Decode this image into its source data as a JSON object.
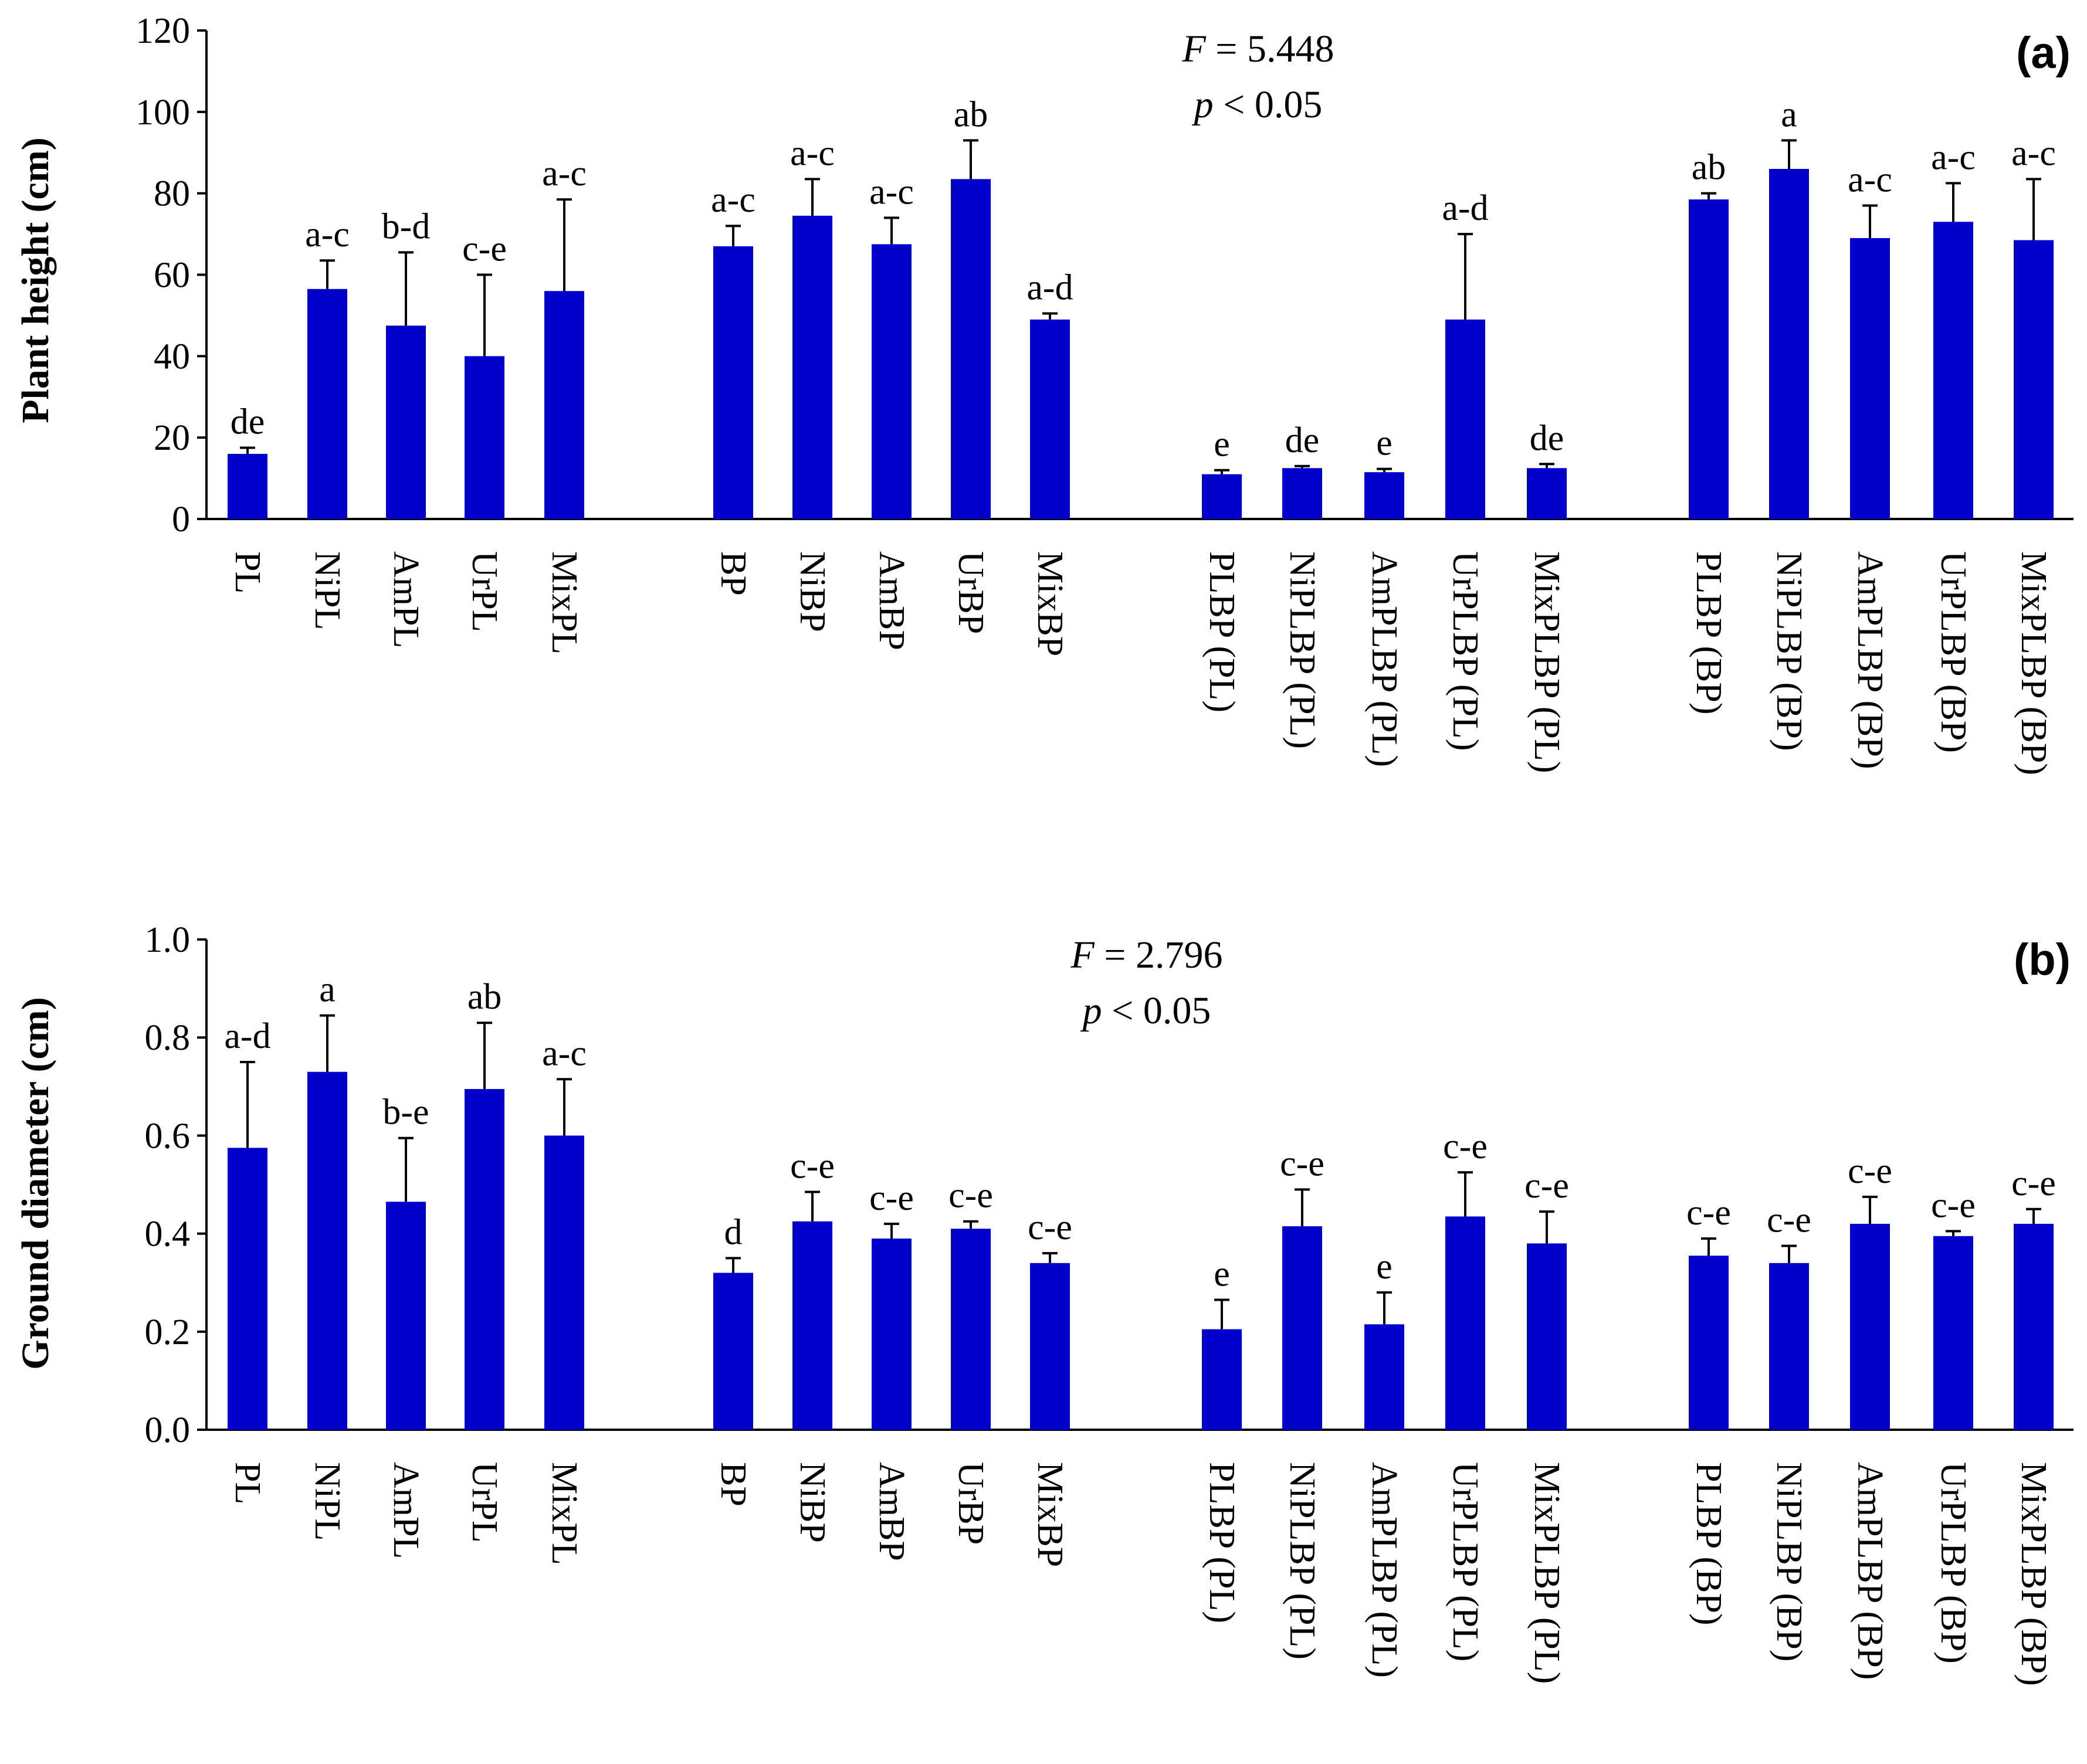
{
  "colors": {
    "bar": "#0000CD",
    "axis": "#000000"
  },
  "chart_data": [
    {
      "type": "bar",
      "panel_label": "(a)",
      "ylabel": "Plant height (cm)",
      "xlabel": "",
      "ylim": [
        0,
        120
      ],
      "yticks": [
        "0",
        "20",
        "40",
        "60",
        "80",
        "100",
        "120"
      ],
      "stats": {
        "f_letter": "F",
        "f_value": " = 5.448",
        "p_letter": "p",
        "p_value": " < 0.05"
      },
      "groups": [
        {
          "categories": [
            "PL",
            "NiPL",
            "AmPL",
            "UrPL",
            "MixPL"
          ],
          "values": [
            16,
            56.5,
            47.5,
            40,
            56
          ],
          "errors": [
            1.5,
            7,
            18,
            20,
            22.5
          ],
          "letters": [
            "de",
            "a-c",
            "b-d",
            "c-e",
            "a-c"
          ]
        },
        {
          "categories": [
            "BP",
            "NiBP",
            "AmBP",
            "UrBP",
            "MixBP"
          ],
          "values": [
            67,
            74.5,
            67.5,
            83.5,
            49
          ],
          "errors": [
            5,
            9,
            6.5,
            9.5,
            1.5
          ],
          "letters": [
            "a-c",
            "a-c",
            "a-c",
            "ab",
            "a-d"
          ]
        },
        {
          "categories": [
            "PLBP (PL)",
            "NiPLBP (PL)",
            "AmPLBP (PL)",
            "UrPLBP (PL)",
            "MixPLBP (PL)"
          ],
          "values": [
            11,
            12.5,
            11.5,
            49,
            12.5
          ],
          "errors": [
            1,
            0.5,
            0.8,
            21,
            1
          ],
          "letters": [
            "e",
            "de",
            "e",
            "a-d",
            "de"
          ]
        },
        {
          "categories": [
            "PLBP (BP)",
            "NiPLBP (BP)",
            "AmPLBP (BP)",
            "UrPLBP (BP)",
            "MixPLBP (BP)"
          ],
          "values": [
            78.5,
            86,
            69,
            73,
            68.5
          ],
          "errors": [
            1.5,
            7,
            8,
            9.5,
            15
          ],
          "letters": [
            "ab",
            "a",
            "a-c",
            "a-c",
            "a-c"
          ]
        }
      ]
    },
    {
      "type": "bar",
      "panel_label": "(b)",
      "ylabel": "Ground diameter (cm)",
      "xlabel": "",
      "ylim": [
        0,
        1.0
      ],
      "yticks": [
        "0.0",
        "0.2",
        "0.4",
        "0.6",
        "0.8",
        "1.0"
      ],
      "stats": {
        "f_letter": "F",
        "f_value": " = 2.796",
        "p_letter": "p",
        "p_value": " < 0.05"
      },
      "groups": [
        {
          "categories": [
            "PL",
            "NiPL",
            "AmPL",
            "UrPL",
            "MixPL"
          ],
          "values": [
            0.575,
            0.73,
            0.465,
            0.695,
            0.6
          ],
          "errors": [
            0.175,
            0.115,
            0.13,
            0.135,
            0.115
          ],
          "letters": [
            "a-d",
            "a",
            "b-e",
            "ab",
            "a-c"
          ]
        },
        {
          "categories": [
            "BP",
            "NiBP",
            "AmBP",
            "UrBP",
            "MixBP"
          ],
          "values": [
            0.32,
            0.425,
            0.39,
            0.41,
            0.34
          ],
          "errors": [
            0.03,
            0.06,
            0.03,
            0.015,
            0.02
          ],
          "letters": [
            "d",
            "c-e",
            "c-e",
            "c-e",
            "c-e"
          ]
        },
        {
          "categories": [
            "PLBP (PL)",
            "NiPLBP (PL)",
            "AmPLBP (PL)",
            "UrPLBP (PL)",
            "MixPLBP (PL)"
          ],
          "values": [
            0.205,
            0.415,
            0.215,
            0.435,
            0.38
          ],
          "errors": [
            0.06,
            0.075,
            0.065,
            0.09,
            0.065
          ],
          "letters": [
            "e",
            "c-e",
            "e",
            "c-e",
            "c-e"
          ]
        },
        {
          "categories": [
            "PLBP (BP)",
            "NiPLBP (BP)",
            "AmPLBP (BP)",
            "UrPLBP (BP)",
            "MixPLBP (BP)"
          ],
          "values": [
            0.355,
            0.34,
            0.42,
            0.395,
            0.42
          ],
          "errors": [
            0.035,
            0.035,
            0.055,
            0.01,
            0.03
          ],
          "letters": [
            "c-e",
            "c-e",
            "c-e",
            "c-e",
            "c-e"
          ]
        }
      ]
    }
  ]
}
